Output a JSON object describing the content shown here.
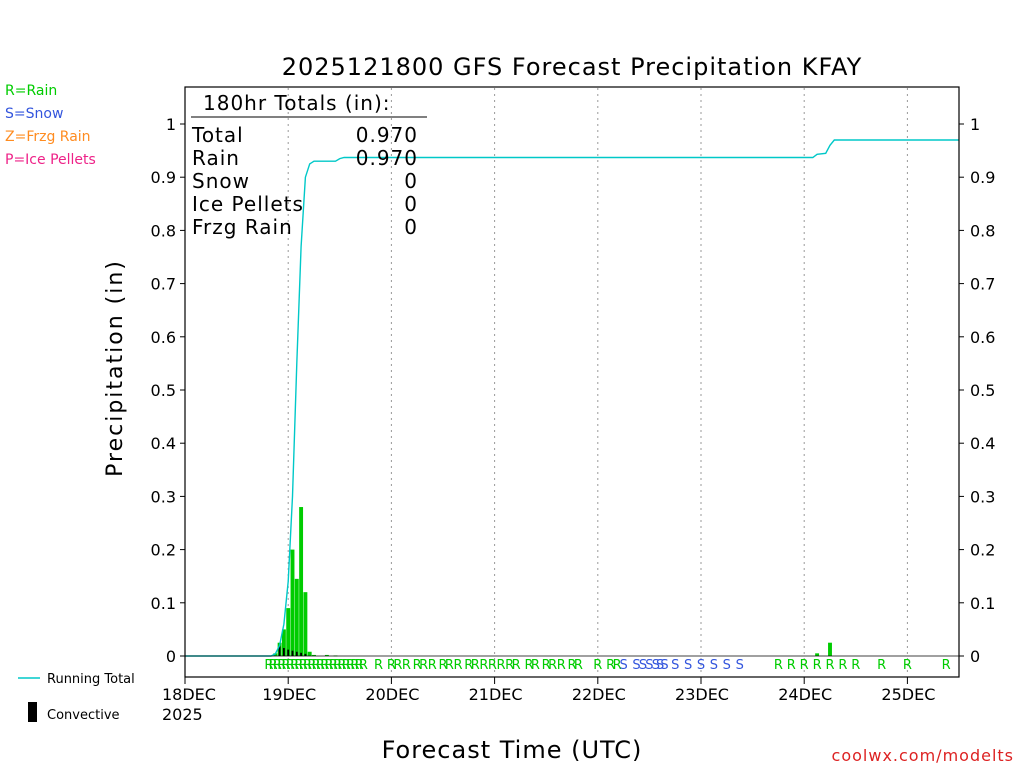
{
  "chart_data": {
    "type": "bar+line",
    "title": "2025121800 GFS Forecast Precipitation KFAY",
    "xlabel": "Forecast Time (UTC)",
    "ylabel": "Precipitation (in)",
    "ylim": [
      0,
      1.05
    ],
    "yticks": [
      0,
      0.1,
      0.2,
      0.3,
      0.4,
      0.5,
      0.6,
      0.7,
      0.8,
      0.9,
      1
    ],
    "ytick_labels": [
      "0",
      "0.1",
      "0.2",
      "0.3",
      "0.4",
      "0.5",
      "0.6",
      "0.7",
      "0.8",
      "0.9",
      "1"
    ],
    "xlim_hours": [
      0,
      180
    ],
    "x_ticks": [
      {
        "hour": 0,
        "label": "18DEC",
        "sublabel": "2025"
      },
      {
        "hour": 24,
        "label": "19DEC"
      },
      {
        "hour": 48,
        "label": "20DEC"
      },
      {
        "hour": 72,
        "label": "21DEC"
      },
      {
        "hour": 96,
        "label": "22DEC"
      },
      {
        "hour": 120,
        "label": "23DEC"
      },
      {
        "hour": 144,
        "label": "24DEC"
      },
      {
        "hour": 168,
        "label": "25DEC"
      }
    ],
    "grid": true,
    "series": [
      {
        "name": "Precipitation",
        "kind": "bar",
        "color": "#00cc00",
        "hours": [
          21,
          22,
          23,
          24,
          25,
          26,
          27,
          28,
          29,
          30,
          33,
          35,
          147,
          150
        ],
        "values": [
          0.005,
          0.025,
          0.05,
          0.09,
          0.2,
          0.145,
          0.28,
          0.12,
          0.008,
          0.002,
          0.002,
          0.001,
          0.005,
          0.025
        ]
      },
      {
        "name": "Convective",
        "kind": "bar",
        "color": "#000000",
        "hours": [
          22,
          23,
          24,
          25,
          26,
          27,
          28
        ],
        "values": [
          0.018,
          0.015,
          0.012,
          0.01,
          0.008,
          0.006,
          0.004
        ]
      },
      {
        "name": "Running Total",
        "kind": "line",
        "color": "#00c8c8",
        "hours": [
          0,
          20,
          21,
          22,
          23,
          24,
          25,
          26,
          27,
          28,
          29,
          30,
          31,
          35,
          36,
          37,
          40,
          45,
          60,
          100,
          130,
          146,
          147,
          149,
          150,
          151,
          170,
          180
        ],
        "values": [
          0,
          0,
          0.004,
          0.02,
          0.06,
          0.14,
          0.3,
          0.55,
          0.77,
          0.9,
          0.925,
          0.93,
          0.93,
          0.93,
          0.935,
          0.937,
          0.937,
          0.937,
          0.937,
          0.937,
          0.937,
          0.937,
          0.943,
          0.945,
          0.96,
          0.97,
          0.97,
          0.97
        ]
      }
    ],
    "precip_type_row": [
      {
        "hour": 19.5,
        "type": "R"
      },
      {
        "hour": 20.5,
        "type": "R"
      },
      {
        "hour": 21.5,
        "type": "R"
      },
      {
        "hour": 22.5,
        "type": "R"
      },
      {
        "hour": 23.5,
        "type": "R"
      },
      {
        "hour": 24.5,
        "type": "R"
      },
      {
        "hour": 25.5,
        "type": "R"
      },
      {
        "hour": 26.5,
        "type": "R"
      },
      {
        "hour": 27.5,
        "type": "R"
      },
      {
        "hour": 28.5,
        "type": "R"
      },
      {
        "hour": 29.5,
        "type": "R"
      },
      {
        "hour": 30.5,
        "type": "R"
      },
      {
        "hour": 31.5,
        "type": "R"
      },
      {
        "hour": 32.5,
        "type": "R"
      },
      {
        "hour": 33.5,
        "type": "R"
      },
      {
        "hour": 34.5,
        "type": "R"
      },
      {
        "hour": 35.5,
        "type": "R"
      },
      {
        "hour": 36.5,
        "type": "R"
      },
      {
        "hour": 37.5,
        "type": "R"
      },
      {
        "hour": 38.5,
        "type": "R"
      },
      {
        "hour": 39.5,
        "type": "R"
      },
      {
        "hour": 40.5,
        "type": "R"
      },
      {
        "hour": 41.5,
        "type": "R"
      },
      {
        "hour": 45,
        "type": "R"
      },
      {
        "hour": 48,
        "type": "R"
      },
      {
        "hour": 49.5,
        "type": "R"
      },
      {
        "hour": 51.5,
        "type": "R"
      },
      {
        "hour": 54,
        "type": "R"
      },
      {
        "hour": 55.5,
        "type": "R"
      },
      {
        "hour": 57.5,
        "type": "R"
      },
      {
        "hour": 60,
        "type": "R"
      },
      {
        "hour": 61.5,
        "type": "R"
      },
      {
        "hour": 63.5,
        "type": "R"
      },
      {
        "hour": 66,
        "type": "R"
      },
      {
        "hour": 67.5,
        "type": "R"
      },
      {
        "hour": 69.5,
        "type": "R"
      },
      {
        "hour": 71.5,
        "type": "R"
      },
      {
        "hour": 73.5,
        "type": "R"
      },
      {
        "hour": 75.5,
        "type": "R"
      },
      {
        "hour": 77,
        "type": "R"
      },
      {
        "hour": 80,
        "type": "R"
      },
      {
        "hour": 81.5,
        "type": "R"
      },
      {
        "hour": 84,
        "type": "R"
      },
      {
        "hour": 85.5,
        "type": "R"
      },
      {
        "hour": 87.5,
        "type": "R"
      },
      {
        "hour": 90,
        "type": "R"
      },
      {
        "hour": 91.5,
        "type": "R"
      },
      {
        "hour": 96,
        "type": "R"
      },
      {
        "hour": 99,
        "type": "R"
      },
      {
        "hour": 100.5,
        "type": "R"
      },
      {
        "hour": 102,
        "type": "S"
      },
      {
        "hour": 105,
        "type": "S"
      },
      {
        "hour": 106.5,
        "type": "S"
      },
      {
        "hour": 108,
        "type": "S"
      },
      {
        "hour": 109.5,
        "type": "S"
      },
      {
        "hour": 110.5,
        "type": "S"
      },
      {
        "hour": 111.5,
        "type": "S"
      },
      {
        "hour": 114,
        "type": "S"
      },
      {
        "hour": 117,
        "type": "S"
      },
      {
        "hour": 120,
        "type": "S"
      },
      {
        "hour": 123,
        "type": "S"
      },
      {
        "hour": 126,
        "type": "S"
      },
      {
        "hour": 129,
        "type": "S"
      },
      {
        "hour": 138,
        "type": "R"
      },
      {
        "hour": 141,
        "type": "R"
      },
      {
        "hour": 144,
        "type": "R"
      },
      {
        "hour": 147,
        "type": "R"
      },
      {
        "hour": 150,
        "type": "R"
      },
      {
        "hour": 153,
        "type": "R"
      },
      {
        "hour": 156,
        "type": "R"
      },
      {
        "hour": 162,
        "type": "R"
      },
      {
        "hour": 168,
        "type": "R"
      },
      {
        "hour": 177,
        "type": "R"
      }
    ]
  },
  "totals_box": {
    "header": "180hr Totals (in):",
    "rows": [
      {
        "label": "Total",
        "value": "0.970"
      },
      {
        "label": "Rain",
        "value": "0.970"
      },
      {
        "label": "Snow",
        "value": "0"
      },
      {
        "label": "Ice Pellets",
        "value": "0"
      },
      {
        "label": "Frzg Rain",
        "value": "0"
      }
    ]
  },
  "type_legend": [
    {
      "text": "R=Rain",
      "color": "#00cc00"
    },
    {
      "text": "S=Snow",
      "color": "#3355dd"
    },
    {
      "text": "Z=Frzg Rain",
      "color": "#ff8c20"
    },
    {
      "text": "P=Ice Pellets",
      "color": "#ee2288"
    }
  ],
  "series_legend": {
    "running_total": "Running Total",
    "convective": "Convective"
  },
  "colors": {
    "rain": "#00cc00",
    "snow": "#3355dd",
    "running_total": "#00c8c8",
    "credit": "#dd2222"
  },
  "credit": "coolwx.com/modelts"
}
